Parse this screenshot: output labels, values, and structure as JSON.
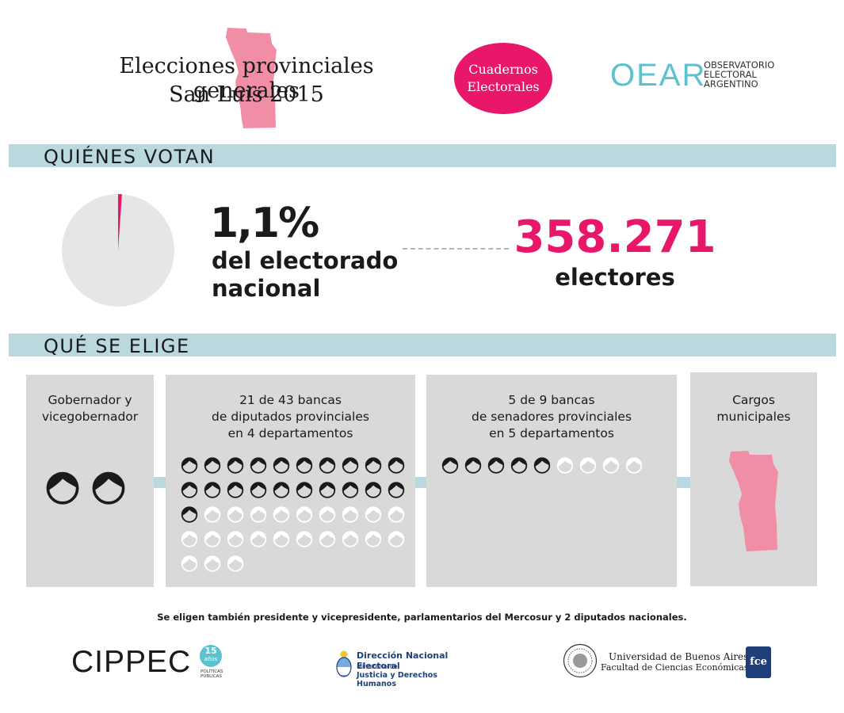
{
  "header": {
    "title_line1": "Elecciones provinciales generales",
    "title_line2": "San Luis 2015",
    "badge_line1": "Cuadernos",
    "badge_line2": "Electorales",
    "oear_mark": "OEAR",
    "oear_line1": "OBSERVATORIO",
    "oear_line2": "ELECTORAL",
    "oear_line3": "ARGENTINO"
  },
  "colors": {
    "pink": "#e8176a",
    "province_pink": "#f18ea5",
    "band": "#b9d9df",
    "card": "#d9d9d9",
    "oear": "#5bc3cf"
  },
  "quienes_votan": {
    "heading": "QUIÉNES VOTAN",
    "percent": "1,1%",
    "percent_line1": "del electorado",
    "percent_line2": "nacional",
    "share_fraction": 0.011,
    "electores_number": "358.271",
    "electores_label": "electores"
  },
  "que_se_elige": {
    "heading": "QUÉ SE ELIGE",
    "cards": [
      {
        "line1": "Gobernador y",
        "line2": "vicegobernador",
        "line3": "",
        "seats_total": 2,
        "seats_filled": 2
      },
      {
        "line1": "21 de 43 bancas",
        "line2": "de diputados provinciales",
        "line3": "en 4 departamentos",
        "seats_total": 43,
        "seats_filled": 21
      },
      {
        "line1": "5 de 9 bancas",
        "line2": "de senadores provinciales",
        "line3": "en 5 departamentos",
        "seats_total": 9,
        "seats_filled": 5
      },
      {
        "line1": "Cargos",
        "line2": "municipales",
        "line3": ""
      }
    ]
  },
  "footer": {
    "note": "Se eligen también presidente y vicepresidente, parlamentarios del Mercosur y 2 diputados nacionales.",
    "cippec": "CIPPEC",
    "cippec_badge": "15",
    "cippec_badge_sub": "años",
    "cippec_sub1": "POLÍTICAS",
    "cippec_sub2": "PÚBLICAS",
    "dne_line1": "Dirección Nacional Electoral",
    "dne_line2": "Ministerio de",
    "dne_line3": "Justicia y Derechos Humanos",
    "uba_line1": "Universidad de Buenos Aires",
    "uba_line2": "Facultad de Ciencias Económicas",
    "fce_mark": "fce"
  }
}
